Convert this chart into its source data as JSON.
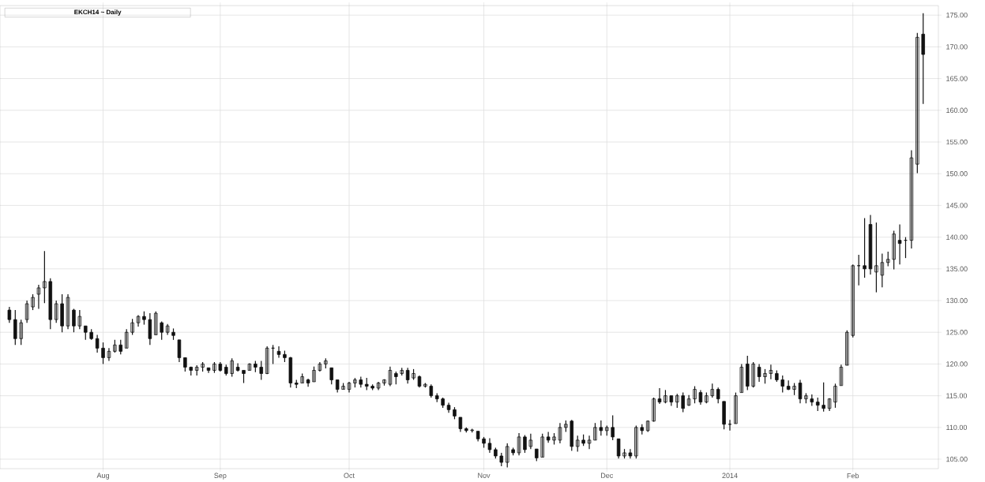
{
  "chart_data": {
    "type": "candlestick",
    "title": "EKCH14 ~ Daily",
    "color": "#111111",
    "grid": true,
    "categories": [
      null,
      null,
      null,
      null,
      null,
      null,
      null,
      null,
      null,
      null,
      null,
      null,
      null,
      null,
      null,
      null,
      "Aug",
      null,
      null,
      null,
      null,
      null,
      null,
      null,
      null,
      null,
      null,
      null,
      null,
      null,
      null,
      null,
      null,
      null,
      null,
      null,
      "Sep",
      null,
      null,
      null,
      null,
      null,
      null,
      null,
      null,
      null,
      null,
      null,
      null,
      null,
      null,
      null,
      null,
      null,
      null,
      null,
      null,
      null,
      "Oct",
      null,
      null,
      null,
      null,
      null,
      null,
      null,
      null,
      null,
      null,
      null,
      null,
      null,
      null,
      null,
      null,
      null,
      null,
      null,
      null,
      null,
      null,
      "Nov",
      null,
      null,
      null,
      null,
      null,
      null,
      null,
      null,
      null,
      null,
      null,
      null,
      null,
      null,
      null,
      null,
      null,
      null,
      null,
      null,
      "Dec",
      null,
      null,
      null,
      null,
      null,
      null,
      null,
      null,
      null,
      null,
      null,
      null,
      null,
      null,
      null,
      null,
      null,
      null,
      null,
      null,
      "2014",
      null,
      null,
      null,
      null,
      null,
      null,
      null,
      null,
      null,
      null,
      null,
      null,
      null,
      null,
      null,
      null,
      null,
      null,
      null,
      null,
      "Feb",
      null,
      null,
      null,
      null,
      null,
      null,
      null,
      null,
      null,
      null,
      null,
      null
    ],
    "ohlc": [
      [
        128.5,
        129.0,
        126.5,
        127.0
      ],
      [
        127.0,
        128.5,
        123.0,
        124.0
      ],
      [
        124.0,
        127.0,
        123.0,
        126.5
      ],
      [
        127.0,
        130.0,
        126.5,
        129.5
      ],
      [
        129.0,
        131.0,
        128.5,
        130.5
      ],
      [
        131.0,
        132.5,
        128.7,
        132.0
      ],
      [
        132.0,
        137.8,
        129.6,
        133.0
      ],
      [
        133.0,
        133.5,
        125.5,
        127.0
      ],
      [
        127.0,
        130.0,
        126.5,
        129.5
      ],
      [
        129.5,
        131.0,
        125.0,
        126.0
      ],
      [
        126.0,
        131.0,
        125.5,
        130.5
      ],
      [
        128.5,
        128.7,
        125.0,
        126.0
      ],
      [
        126.0,
        128.5,
        125.5,
        127.5
      ],
      [
        126.0,
        126.0,
        123.8,
        125.0
      ],
      [
        125.0,
        125.5,
        123.8,
        124.0
      ],
      [
        124.0,
        124.6,
        121.8,
        122.5
      ],
      [
        122.5,
        123.4,
        120.0,
        121.0
      ],
      [
        121.0,
        122.5,
        120.5,
        122.0
      ],
      [
        122.0,
        123.8,
        121.8,
        123.0
      ],
      [
        123.0,
        123.8,
        121.5,
        122.0
      ],
      [
        122.5,
        125.5,
        122.5,
        125.0
      ],
      [
        125.0,
        127.1,
        124.6,
        126.5
      ],
      [
        126.5,
        127.7,
        125.9,
        127.5
      ],
      [
        127.5,
        128.3,
        126.2,
        127.0
      ],
      [
        127.0,
        128.0,
        123.0,
        124.0
      ],
      [
        124.6,
        128.3,
        124.6,
        128.0
      ],
      [
        126.5,
        126.7,
        123.8,
        125.0
      ],
      [
        125.0,
        126.3,
        124.6,
        126.0
      ],
      [
        125.0,
        125.6,
        123.8,
        124.5
      ],
      [
        123.8,
        123.8,
        120.3,
        121.0
      ],
      [
        121.0,
        121.0,
        118.8,
        119.5
      ],
      [
        119.5,
        119.6,
        118.2,
        119.0
      ],
      [
        119.0,
        119.8,
        118.2,
        119.5
      ],
      [
        119.5,
        120.3,
        118.8,
        120.0
      ],
      [
        119.4,
        119.4,
        118.6,
        119.0
      ],
      [
        119.0,
        120.3,
        118.6,
        120.0
      ],
      [
        120.0,
        120.3,
        118.8,
        119.0
      ],
      [
        119.5,
        119.9,
        118.2,
        118.5
      ],
      [
        118.5,
        120.9,
        118.0,
        120.5
      ],
      [
        119.5,
        120.1,
        118.8,
        119.0
      ],
      [
        119.0,
        119.0,
        117.0,
        118.5
      ],
      [
        119.0,
        120.1,
        119.0,
        120.0
      ],
      [
        120.0,
        120.5,
        118.7,
        119.5
      ],
      [
        119.5,
        120.5,
        117.5,
        118.5
      ],
      [
        118.5,
        122.8,
        118.4,
        122.5
      ],
      [
        122.5,
        123.0,
        120.0,
        122.5
      ],
      [
        122.0,
        122.8,
        121.0,
        121.5
      ],
      [
        121.5,
        122.1,
        120.3,
        121.0
      ],
      [
        121.0,
        121.1,
        116.3,
        117.0
      ],
      [
        117.0,
        117.5,
        116.2,
        116.8
      ],
      [
        117.0,
        118.5,
        117.0,
        118.0
      ],
      [
        117.5,
        117.7,
        116.4,
        117.0
      ],
      [
        117.2,
        119.6,
        117.2,
        119.0
      ],
      [
        119.0,
        120.3,
        118.8,
        120.0
      ],
      [
        120.0,
        120.9,
        119.3,
        120.5
      ],
      [
        119.4,
        119.4,
        116.8,
        117.5
      ],
      [
        117.5,
        117.5,
        115.5,
        116.0
      ],
      [
        116.0,
        117.0,
        116.0,
        116.5
      ],
      [
        116.0,
        117.2,
        115.5,
        117.0
      ],
      [
        117.0,
        117.8,
        116.3,
        117.5
      ],
      [
        117.5,
        118.0,
        116.3,
        116.8
      ],
      [
        116.8,
        117.8,
        115.9,
        116.5
      ],
      [
        116.5,
        116.8,
        115.9,
        116.2
      ],
      [
        116.2,
        117.2,
        115.9,
        117.0
      ],
      [
        117.0,
        117.6,
        116.6,
        117.5
      ],
      [
        116.8,
        119.6,
        116.5,
        119.0
      ],
      [
        118.5,
        118.8,
        116.8,
        118.0
      ],
      [
        118.5,
        119.4,
        118.2,
        119.0
      ],
      [
        119.0,
        119.4,
        116.9,
        117.5
      ],
      [
        117.8,
        119.2,
        117.5,
        118.5
      ],
      [
        118.0,
        118.2,
        116.3,
        116.5
      ],
      [
        116.5,
        117.0,
        116.3,
        116.8
      ],
      [
        116.5,
        116.8,
        114.7,
        115.0
      ],
      [
        115.0,
        115.4,
        114.0,
        114.5
      ],
      [
        114.5,
        114.7,
        113.1,
        113.5
      ],
      [
        113.5,
        113.9,
        112.3,
        112.8
      ],
      [
        112.8,
        113.2,
        111.3,
        111.8
      ],
      [
        111.6,
        111.6,
        109.3,
        109.8
      ],
      [
        109.8,
        110.0,
        109.2,
        109.5
      ],
      [
        109.5,
        109.8,
        109.2,
        109.6
      ],
      [
        109.4,
        109.4,
        107.8,
        108.2
      ],
      [
        108.2,
        108.5,
        106.8,
        107.5
      ],
      [
        107.5,
        108.3,
        106.0,
        106.5
      ],
      [
        106.5,
        106.8,
        105.1,
        105.5
      ],
      [
        105.5,
        106.0,
        103.9,
        104.5
      ],
      [
        104.5,
        107.5,
        103.7,
        107.0
      ],
      [
        106.5,
        106.8,
        105.6,
        106.0
      ],
      [
        106.0,
        109.1,
        105.6,
        108.5
      ],
      [
        108.5,
        108.8,
        106.0,
        106.5
      ],
      [
        107.0,
        109.0,
        106.6,
        108.0
      ],
      [
        106.6,
        106.6,
        104.7,
        105.2
      ],
      [
        105.3,
        109.0,
        105.3,
        108.5
      ],
      [
        108.5,
        109.3,
        107.6,
        108.0
      ],
      [
        108.0,
        109.1,
        107.3,
        108.5
      ],
      [
        108.0,
        110.7,
        107.5,
        110.0
      ],
      [
        110.0,
        111.1,
        109.3,
        110.5
      ],
      [
        111.0,
        111.2,
        106.3,
        107.0
      ],
      [
        107.0,
        108.7,
        106.2,
        108.0
      ],
      [
        108.0,
        108.9,
        107.1,
        107.5
      ],
      [
        107.5,
        108.7,
        106.6,
        108.0
      ],
      [
        108.0,
        110.7,
        108.0,
        110.0
      ],
      [
        110.0,
        111.1,
        108.7,
        109.5
      ],
      [
        109.5,
        110.3,
        108.7,
        110.0
      ],
      [
        110.0,
        111.9,
        108.0,
        108.5
      ],
      [
        108.2,
        108.2,
        105.1,
        105.5
      ],
      [
        105.5,
        106.6,
        105.1,
        106.0
      ],
      [
        106.0,
        106.6,
        105.1,
        105.5
      ],
      [
        105.5,
        110.3,
        105.1,
        110.0
      ],
      [
        110.0,
        110.5,
        108.9,
        109.5
      ],
      [
        109.5,
        111.1,
        109.3,
        111.0
      ],
      [
        111.0,
        114.7,
        110.9,
        114.5
      ],
      [
        114.5,
        116.2,
        113.7,
        114.0
      ],
      [
        114.0,
        115.9,
        113.8,
        115.0
      ],
      [
        115.0,
        115.0,
        113.4,
        114.0
      ],
      [
        114.0,
        115.3,
        113.1,
        115.0
      ],
      [
        115.0,
        115.5,
        112.4,
        113.0
      ],
      [
        113.5,
        115.1,
        113.4,
        114.5
      ],
      [
        114.5,
        116.5,
        113.8,
        116.0
      ],
      [
        115.5,
        115.9,
        113.6,
        114.0
      ],
      [
        114.0,
        115.5,
        113.8,
        115.0
      ],
      [
        115.0,
        116.9,
        114.7,
        116.0
      ],
      [
        116.0,
        116.3,
        113.8,
        114.5
      ],
      [
        114.1,
        114.1,
        109.7,
        110.5
      ],
      [
        110.5,
        111.2,
        109.5,
        110.5
      ],
      [
        110.6,
        115.5,
        110.6,
        115.0
      ],
      [
        115.5,
        120.0,
        115.5,
        119.5
      ],
      [
        120.0,
        121.3,
        115.9,
        116.5
      ],
      [
        116.5,
        120.3,
        116.3,
        120.0
      ],
      [
        119.5,
        120.0,
        117.2,
        118.0
      ],
      [
        118.0,
        119.2,
        116.9,
        118.5
      ],
      [
        118.5,
        119.9,
        117.6,
        119.0
      ],
      [
        118.5,
        119.0,
        117.2,
        117.5
      ],
      [
        117.5,
        118.2,
        115.5,
        116.5
      ],
      [
        116.5,
        117.4,
        115.9,
        116.0
      ],
      [
        116.0,
        117.0,
        115.1,
        116.5
      ],
      [
        117.0,
        117.5,
        113.8,
        114.5
      ],
      [
        114.5,
        115.4,
        113.8,
        115.0
      ],
      [
        114.5,
        115.2,
        113.4,
        114.0
      ],
      [
        114.0,
        114.7,
        112.6,
        113.5
      ],
      [
        113.5,
        117.1,
        112.5,
        113.0
      ],
      [
        113.0,
        114.6,
        112.6,
        114.5
      ],
      [
        114.0,
        116.9,
        113.1,
        116.5
      ],
      [
        116.6,
        119.9,
        116.6,
        119.5
      ],
      [
        119.8,
        125.3,
        119.8,
        125.0
      ],
      [
        124.5,
        135.7,
        124.2,
        135.5
      ],
      [
        135.5,
        137.2,
        132.4,
        135.5
      ],
      [
        135.5,
        143.0,
        133.6,
        135.0
      ],
      [
        142.0,
        143.5,
        134.1,
        135.0
      ],
      [
        134.5,
        142.3,
        131.3,
        135.5
      ],
      [
        134.0,
        137.4,
        132.1,
        136.0
      ],
      [
        136.0,
        137.7,
        135.4,
        136.5
      ],
      [
        136.5,
        141.0,
        134.9,
        140.5
      ],
      [
        139.5,
        142.0,
        135.7,
        139.0
      ],
      [
        139.5,
        140.0,
        136.7,
        139.5
      ],
      [
        139.5,
        153.7,
        138.2,
        152.5
      ],
      [
        151.5,
        172.2,
        150.1,
        171.5
      ],
      [
        172.0,
        175.3,
        161.0,
        168.8
      ]
    ],
    "ylim": [
      103.5,
      176.5
    ],
    "yticks": [
      {
        "value": 105,
        "label": "105.00"
      },
      {
        "value": 110,
        "label": "110.00"
      },
      {
        "value": 115,
        "label": "115.00"
      },
      {
        "value": 120,
        "label": "120.00"
      },
      {
        "value": 125,
        "label": "125.00"
      },
      {
        "value": 130,
        "label": "130.00"
      },
      {
        "value": 135,
        "label": "135.00"
      },
      {
        "value": 140,
        "label": "140.00"
      },
      {
        "value": 145,
        "label": "145.00"
      },
      {
        "value": 150,
        "label": "150.00"
      },
      {
        "value": 155,
        "label": "155.00"
      },
      {
        "value": 160,
        "label": "160.00"
      },
      {
        "value": 165,
        "label": "165.00"
      },
      {
        "value": 170,
        "label": "170.00"
      },
      {
        "value": 175,
        "label": "175.00"
      }
    ]
  }
}
